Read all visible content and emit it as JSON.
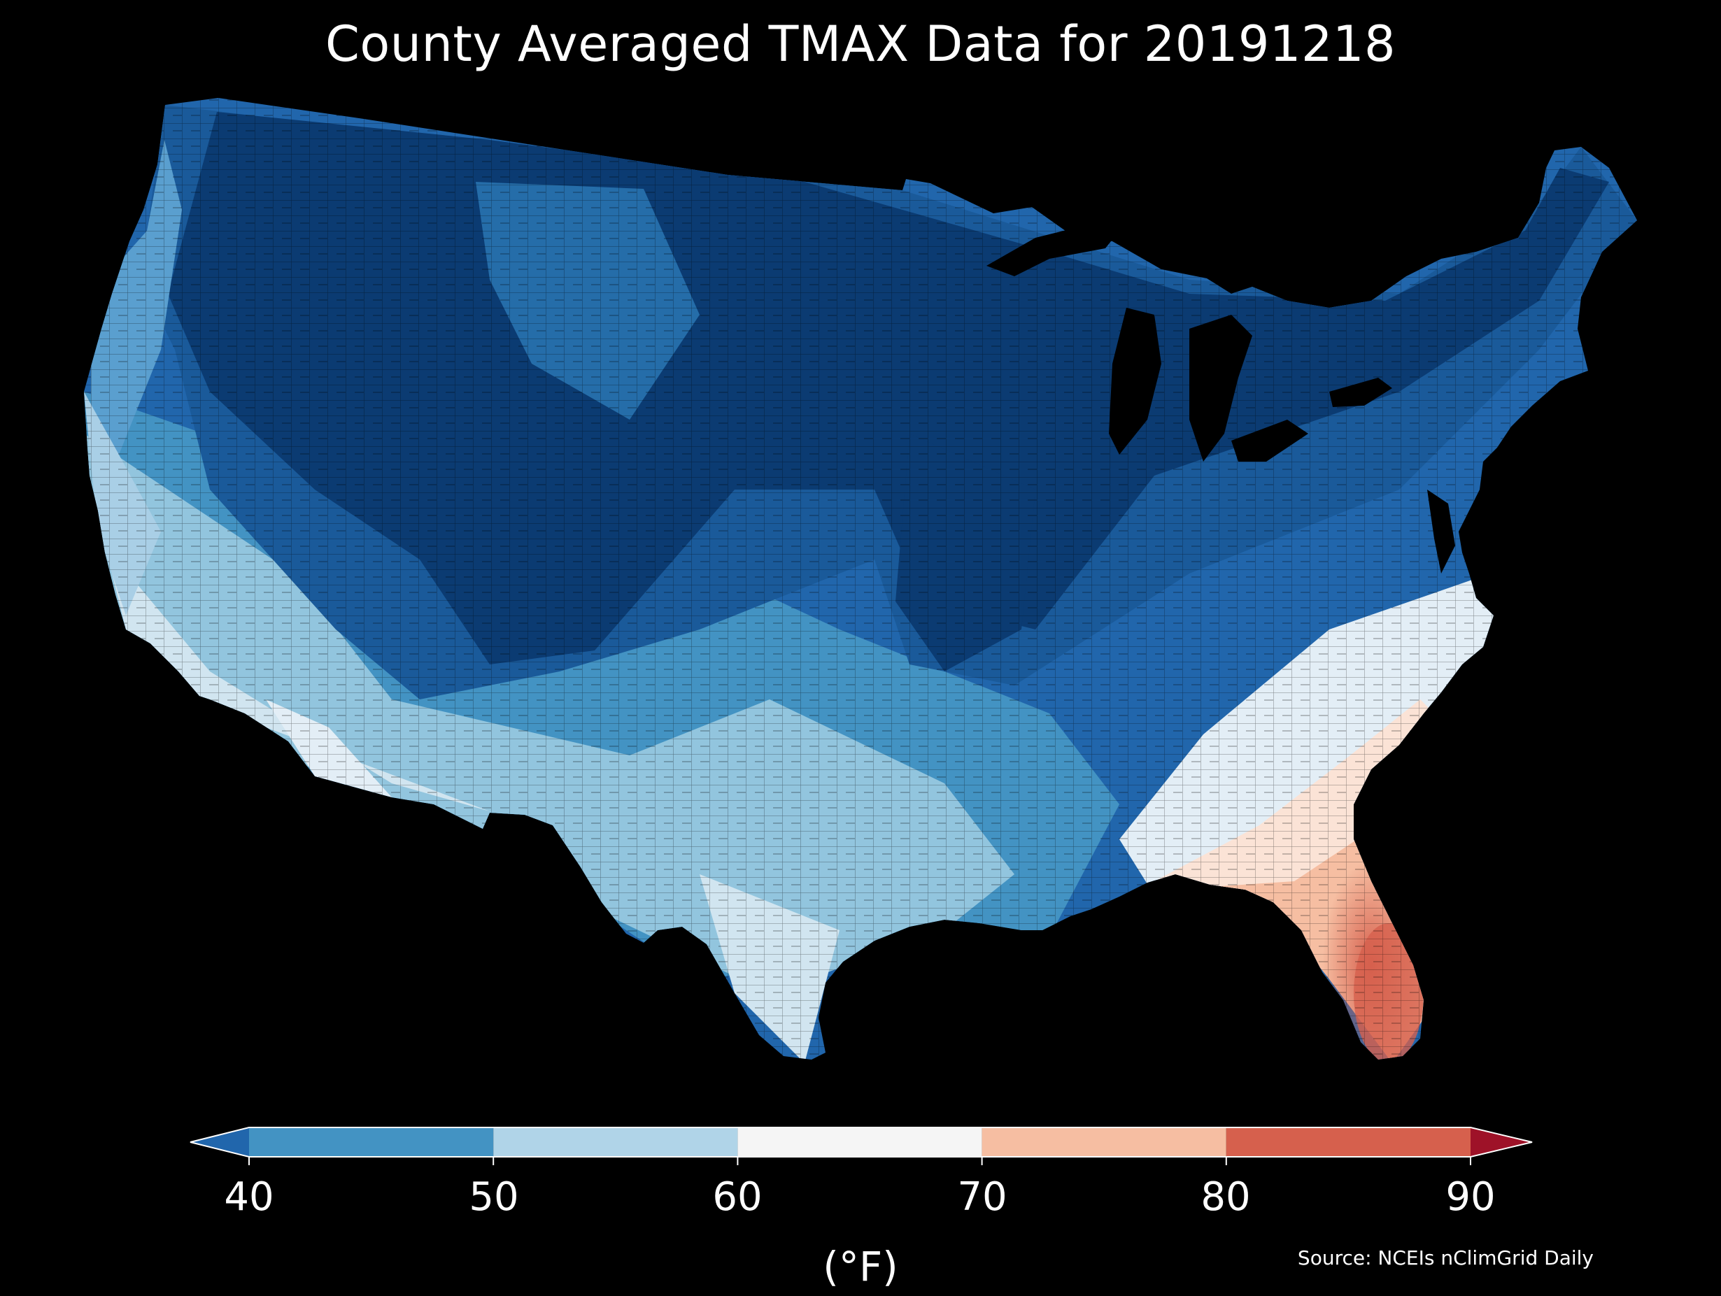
{
  "title": "County Averaged TMAX Data for 20191218",
  "source": "Source: NCEIs nClimGrid Daily",
  "colorbar": {
    "unit_label": "(°F)",
    "ticks": [
      "40",
      "50",
      "60",
      "70",
      "80",
      "90"
    ],
    "range": [
      40,
      90
    ],
    "bins": [
      {
        "from": 40,
        "to": 50,
        "color": "#4393c3"
      },
      {
        "from": 50,
        "to": 60,
        "color": "#b0d4e8"
      },
      {
        "from": 60,
        "to": 70,
        "color": "#f5f5f5"
      },
      {
        "from": 70,
        "to": 80,
        "color": "#f6bea2"
      },
      {
        "from": 80,
        "to": 90,
        "color": "#d6604d"
      }
    ],
    "under_color": "#2166ac",
    "over_color": "#9e1228",
    "extend": "both"
  },
  "map": {
    "region": "Contiguous United States, county level",
    "colors": {
      "very_cold": "#0b3b72",
      "cold": "#2166ac",
      "cool": "#4393c3",
      "mild": "#92c5de",
      "neutral": "#e3eef6",
      "warm": "#f6bea2",
      "hot": "#d6604d",
      "background": "#000000"
    }
  }
}
